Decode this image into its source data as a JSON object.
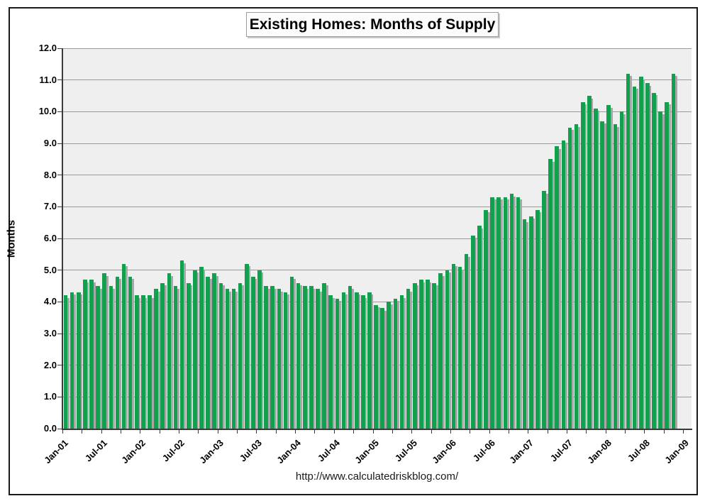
{
  "figure": {
    "title": "Existing Homes: Months of Supply",
    "y_axis_title": "Months",
    "source_url": "http://www.calculatedriskblog.com/"
  },
  "chart_data": {
    "type": "bar",
    "title": "Existing Homes: Months of Supply",
    "xlabel": "",
    "ylabel": "Months",
    "ylim": [
      0.0,
      12.0
    ],
    "ytick_step": 1.0,
    "ytick_labels": [
      "0.0",
      "1.0",
      "2.0",
      "3.0",
      "4.0",
      "5.0",
      "6.0",
      "7.0",
      "8.0",
      "9.0",
      "10.0",
      "11.0",
      "12.0"
    ],
    "x_tick_labels": [
      "Jan-01",
      "Jul-01",
      "Jan-02",
      "Jul-02",
      "Jan-03",
      "Jul-03",
      "Jan-04",
      "Jul-04",
      "Jan-05",
      "Jul-05",
      "Jan-06",
      "Jul-06",
      "Jan-07",
      "Jul-07",
      "Jan-08",
      "Jul-08",
      "Jan-09"
    ],
    "grid": true,
    "legend": "none",
    "bar_color": "#10a04e",
    "bar_shadow_color": "#a7a7a7",
    "plot_background": "#efefef",
    "footer": "http://www.calculatedriskblog.com/",
    "categories": [
      "Jan-01",
      "Feb-01",
      "Mar-01",
      "Apr-01",
      "May-01",
      "Jun-01",
      "Jul-01",
      "Aug-01",
      "Sep-01",
      "Oct-01",
      "Nov-01",
      "Dec-01",
      "Jan-02",
      "Feb-02",
      "Mar-02",
      "Apr-02",
      "May-02",
      "Jun-02",
      "Jul-02",
      "Aug-02",
      "Sep-02",
      "Oct-02",
      "Nov-02",
      "Dec-02",
      "Jan-03",
      "Feb-03",
      "Mar-03",
      "Apr-03",
      "May-03",
      "Jun-03",
      "Jul-03",
      "Aug-03",
      "Sep-03",
      "Oct-03",
      "Nov-03",
      "Dec-03",
      "Jan-04",
      "Feb-04",
      "Mar-04",
      "Apr-04",
      "May-04",
      "Jun-04",
      "Jul-04",
      "Aug-04",
      "Sep-04",
      "Oct-04",
      "Nov-04",
      "Dec-04",
      "Jan-05",
      "Feb-05",
      "Mar-05",
      "Apr-05",
      "May-05",
      "Jun-05",
      "Jul-05",
      "Aug-05",
      "Sep-05",
      "Oct-05",
      "Nov-05",
      "Dec-05",
      "Jan-06",
      "Feb-06",
      "Mar-06",
      "Apr-06",
      "May-06",
      "Jun-06",
      "Jul-06",
      "Aug-06",
      "Sep-06",
      "Oct-06",
      "Nov-06",
      "Dec-06",
      "Jan-07",
      "Feb-07",
      "Mar-07",
      "Apr-07",
      "May-07",
      "Jun-07",
      "Jul-07",
      "Aug-07",
      "Sep-07",
      "Oct-07",
      "Nov-07",
      "Dec-07",
      "Jan-08",
      "Feb-08",
      "Mar-08",
      "Apr-08",
      "May-08",
      "Jun-08",
      "Jul-08",
      "Aug-08",
      "Sep-08",
      "Oct-08",
      "Nov-08"
    ],
    "values": [
      4.2,
      4.3,
      4.3,
      4.7,
      4.7,
      4.5,
      4.9,
      4.5,
      4.8,
      5.2,
      4.8,
      4.2,
      4.2,
      4.2,
      4.4,
      4.6,
      4.9,
      4.5,
      5.3,
      4.6,
      5.0,
      5.1,
      4.8,
      4.9,
      4.6,
      4.4,
      4.4,
      4.6,
      5.2,
      4.8,
      5.0,
      4.5,
      4.5,
      4.4,
      4.3,
      4.8,
      4.6,
      4.5,
      4.5,
      4.4,
      4.6,
      4.2,
      4.1,
      4.3,
      4.5,
      4.3,
      4.2,
      4.3,
      3.9,
      3.8,
      4.0,
      4.1,
      4.2,
      4.4,
      4.6,
      4.7,
      4.7,
      4.6,
      4.9,
      5.0,
      5.2,
      5.1,
      5.5,
      6.1,
      6.4,
      6.9,
      7.3,
      7.3,
      7.3,
      7.4,
      7.3,
      6.6,
      6.7,
      6.9,
      7.5,
      8.5,
      8.9,
      9.1,
      9.5,
      9.6,
      10.3,
      10.5,
      10.1,
      9.7,
      10.2,
      9.6,
      10.0,
      11.2,
      10.8,
      11.1,
      10.9,
      10.6,
      10.0,
      10.3,
      11.2
    ]
  }
}
